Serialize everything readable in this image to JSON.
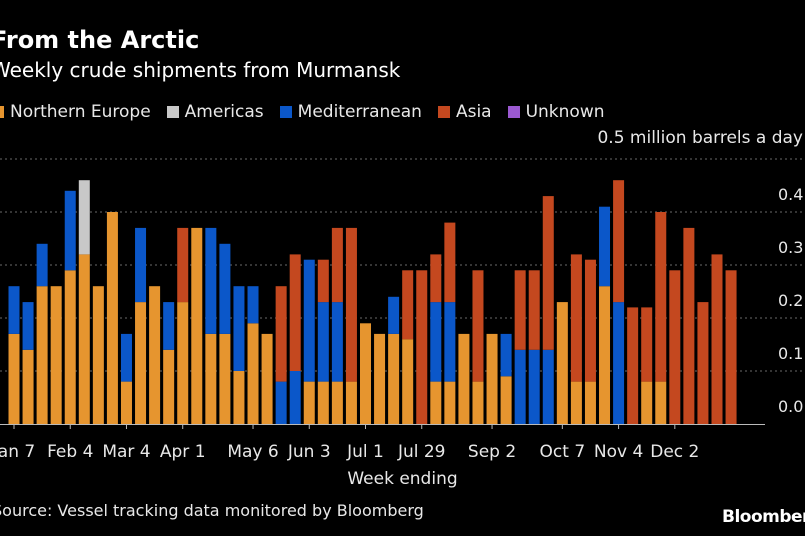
{
  "header": {
    "title": "From the Arctic",
    "subtitle": "Weekly crude shipments from Murmansk"
  },
  "legend": [
    {
      "label": "Northern Europe",
      "color": "#e6952f"
    },
    {
      "label": "Americas",
      "color": "#c8c8c8"
    },
    {
      "label": "Mediterranean",
      "color": "#0b57c9"
    },
    {
      "label": "Asia",
      "color": "#c4481f"
    },
    {
      "label": "Unknown",
      "color": "#9b59d1"
    }
  ],
  "unit_label": "0.5 million barrels a day",
  "source": "Source: Vessel tracking data monitored by Bloomberg",
  "logo": "Bloomberg",
  "chart_data": {
    "type": "bar",
    "stacked": true,
    "xlabel": "Week ending",
    "ylabel": "",
    "ylim": [
      0,
      0.5
    ],
    "yticks": [
      0.0,
      0.1,
      0.2,
      0.3,
      0.4
    ],
    "ytick_labels": [
      "0.0",
      "0.1",
      "0.2",
      "0.3",
      "0.4"
    ],
    "grid": true,
    "legend_position": "top-left",
    "xtick_labels": [
      {
        "label": "Jan 7",
        "index": 0
      },
      {
        "label": "Feb 4",
        "index": 4
      },
      {
        "label": "Mar 4",
        "index": 8
      },
      {
        "label": "Apr 1",
        "index": 12
      },
      {
        "label": "May 6",
        "index": 17
      },
      {
        "label": "Jun 3",
        "index": 21
      },
      {
        "label": "Jul 1",
        "index": 25
      },
      {
        "label": "Jul 29",
        "index": 29
      },
      {
        "label": "Sep 2",
        "index": 34
      },
      {
        "label": "Oct 7",
        "index": 39
      },
      {
        "label": "Nov 4",
        "index": 43
      },
      {
        "label": "Dec 2",
        "index": 47
      }
    ],
    "series": [
      {
        "name": "Northern Europe",
        "color": "#e6952f",
        "values": [
          0.17,
          0.14,
          0.26,
          0.26,
          0.29,
          0.32,
          0.26,
          0.4,
          0.08,
          0.23,
          0.26,
          0.14,
          0.23,
          0.37,
          0.17,
          0.17,
          0.1,
          0.19,
          0.17,
          0.0,
          0.0,
          0.08,
          0.08,
          0.08,
          0.08,
          0.19,
          0.17,
          0.17,
          0.16,
          0.0,
          0.08,
          0.08,
          0.17,
          0.08,
          0.17,
          0.09,
          0.0,
          0.0,
          0.0,
          0.23,
          0.08,
          0.08,
          0.26,
          0.0,
          0.0,
          0.08,
          0.08,
          0.0,
          0.0,
          0.0,
          0.0,
          0.0,
          0.0
        ]
      },
      {
        "name": "Americas",
        "color": "#c8c8c8",
        "values": [
          0,
          0,
          0,
          0,
          0,
          0.14,
          0,
          0,
          0,
          0,
          0,
          0,
          0,
          0,
          0,
          0,
          0,
          0,
          0,
          0,
          0,
          0,
          0,
          0,
          0,
          0,
          0,
          0,
          0,
          0,
          0,
          0,
          0,
          0,
          0,
          0,
          0,
          0,
          0,
          0,
          0,
          0,
          0,
          0,
          0,
          0,
          0,
          0,
          0,
          0,
          0,
          0,
          0
        ]
      },
      {
        "name": "Mediterranean",
        "color": "#0b57c9",
        "values": [
          0.09,
          0.09,
          0.08,
          0,
          0.15,
          0,
          0,
          0,
          0.09,
          0.14,
          0,
          0.09,
          0,
          0,
          0.2,
          0.17,
          0.16,
          0.07,
          0,
          0.08,
          0.1,
          0.23,
          0.15,
          0.15,
          0,
          0,
          0,
          0.07,
          0,
          0,
          0.15,
          0.15,
          0,
          0,
          0,
          0.08,
          0.14,
          0.14,
          0.14,
          0,
          0,
          0,
          0.15,
          0.23,
          0,
          0,
          0,
          0,
          0,
          0,
          0,
          0,
          0
        ]
      },
      {
        "name": "Asia",
        "color": "#c4481f",
        "values": [
          0,
          0,
          0,
          0,
          0,
          0,
          0,
          0,
          0,
          0,
          0,
          0,
          0.14,
          0,
          0,
          0,
          0,
          0,
          0,
          0.18,
          0.22,
          0,
          0.08,
          0.14,
          0.29,
          0,
          0,
          0,
          0.13,
          0.29,
          0.09,
          0.15,
          0,
          0.21,
          0,
          0,
          0.15,
          0.15,
          0.29,
          0,
          0.24,
          0.23,
          0,
          0.23,
          0.22,
          0.14,
          0.32,
          0.29,
          0.37,
          0.23,
          0.32,
          0.29,
          0
        ]
      },
      {
        "name": "Unknown",
        "color": "#9b59d1",
        "values": [
          0,
          0,
          0,
          0,
          0,
          0,
          0,
          0,
          0,
          0,
          0,
          0,
          0,
          0,
          0,
          0,
          0,
          0,
          0,
          0,
          0,
          0,
          0,
          0,
          0,
          0,
          0,
          0,
          0,
          0,
          0,
          0,
          0,
          0,
          0,
          0,
          0,
          0,
          0,
          0,
          0,
          0,
          0,
          0,
          0,
          0,
          0,
          0,
          0,
          0,
          0,
          0,
          0
        ]
      }
    ]
  }
}
